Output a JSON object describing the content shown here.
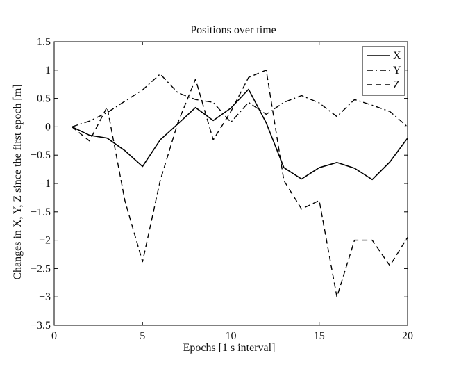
{
  "chart_data": {
    "type": "line",
    "title": "Positions over time",
    "xlabel": "Epochs [1 s interval]",
    "ylabel": "Changes in X, Y, Z since the first epoch [m]",
    "xlim": [
      0,
      20
    ],
    "ylim": [
      -3.5,
      1.5
    ],
    "xticks": [
      0,
      5,
      10,
      15,
      20
    ],
    "yticks": [
      1.5,
      1,
      0.5,
      0,
      -0.5,
      -1,
      -1.5,
      -2,
      -2.5,
      -3,
      -3.5
    ],
    "ytick_labels": [
      "1.5",
      "1",
      "0.5",
      "0",
      "−0.5",
      "−1",
      "−1.5",
      "−2",
      "−2.5",
      "−3",
      "−3.5"
    ],
    "grid": false,
    "legend": "top-right",
    "x": [
      1,
      2,
      3,
      4,
      5,
      6,
      7,
      8,
      9,
      10,
      11,
      12,
      13,
      14,
      15,
      16,
      17,
      18,
      19,
      20
    ],
    "series": [
      {
        "name": "X",
        "style": "solid",
        "values": [
          0,
          -0.15,
          -0.2,
          -0.42,
          -0.7,
          -0.23,
          0.05,
          0.34,
          0.11,
          0.33,
          0.66,
          0.07,
          -0.72,
          -0.92,
          -0.72,
          -0.63,
          -0.73,
          -0.93,
          -0.62,
          -0.2
        ]
      },
      {
        "name": "Y",
        "style": "dashdot",
        "values": [
          0,
          0.1,
          0.25,
          0.45,
          0.65,
          0.93,
          0.6,
          0.48,
          0.43,
          0.08,
          0.43,
          0.22,
          0.43,
          0.55,
          0.42,
          0.18,
          0.48,
          0.38,
          0.27,
          0
        ]
      },
      {
        "name": "Z",
        "style": "dashed",
        "values": [
          0,
          -0.25,
          0.35,
          -1.3,
          -2.38,
          -0.95,
          0.07,
          0.84,
          -0.23,
          0.27,
          0.87,
          1.0,
          -0.95,
          -1.45,
          -1.3,
          -3.0,
          -2.0,
          -2.0,
          -2.45,
          -1.95
        ]
      }
    ]
  }
}
